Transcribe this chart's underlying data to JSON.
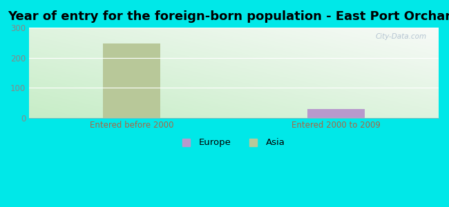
{
  "title": "Year of entry for the foreign-born population - East Port Orchard",
  "categories": [
    "Entered before 2000",
    "Entered 2000 to 2009"
  ],
  "series": {
    "Europe": [
      0,
      28
    ],
    "Asia": [
      248,
      0
    ]
  },
  "colors": {
    "Europe": "#b899cc",
    "Asia": "#b8c899"
  },
  "ylim": [
    0,
    300
  ],
  "yticks": [
    0,
    100,
    200,
    300
  ],
  "background_outer": "#00e8e8",
  "bar_width": 0.28,
  "title_fontsize": 13,
  "tick_label_fontsize": 8.5,
  "axis_label_color": "#888888",
  "watermark": "City-Data.com",
  "grid_color": "#ddeecc",
  "category_label_color": "#aa6644"
}
